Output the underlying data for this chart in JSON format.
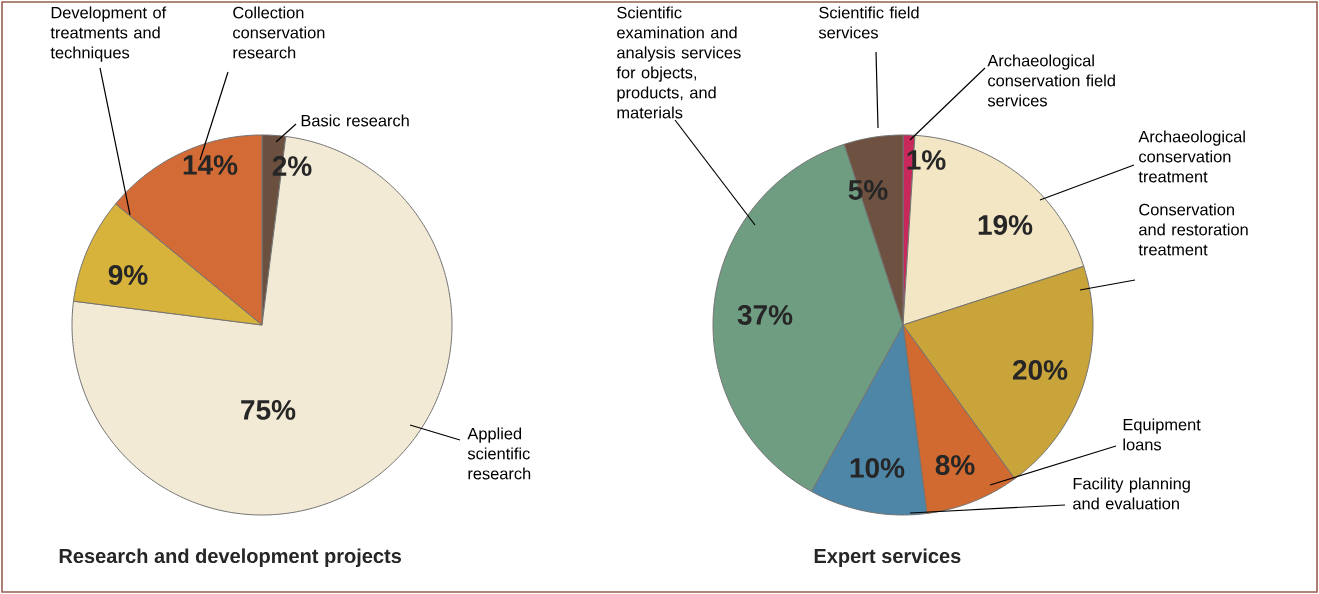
{
  "chart_data": [
    {
      "type": "pie",
      "title": "Research and development projects",
      "categories": [
        "Basic research",
        "Applied scientific research",
        "Development of treatments and techniques",
        "Collection conservation research"
      ],
      "values": [
        2,
        75,
        9,
        14
      ],
      "value_labels": [
        "2%",
        "75%",
        "9%",
        "14%"
      ],
      "colors": [
        "#6b5040",
        "#f3ead6",
        "#d7b33c",
        "#d26b36"
      ]
    },
    {
      "type": "pie",
      "title": "Expert services",
      "categories": [
        "Archaeological conservation field services",
        "Archaeological conservation treatment",
        "Conservation and restoration treatment",
        "Equipment loans",
        "Facility planning and evaluation",
        "Scientific examination and analysis services for objects, products, and materials",
        "Scientific field services"
      ],
      "values": [
        1,
        19,
        20,
        8,
        10,
        37,
        5
      ],
      "value_labels": [
        "1%",
        "19%",
        "20%",
        "8%",
        "10%",
        "37%",
        "5%"
      ],
      "colors": [
        "#c8285a",
        "#f2e6c4",
        "#c9a43a",
        "#d06a30",
        "#4e86a8",
        "#6f9d82",
        "#6e5140"
      ]
    }
  ]
}
